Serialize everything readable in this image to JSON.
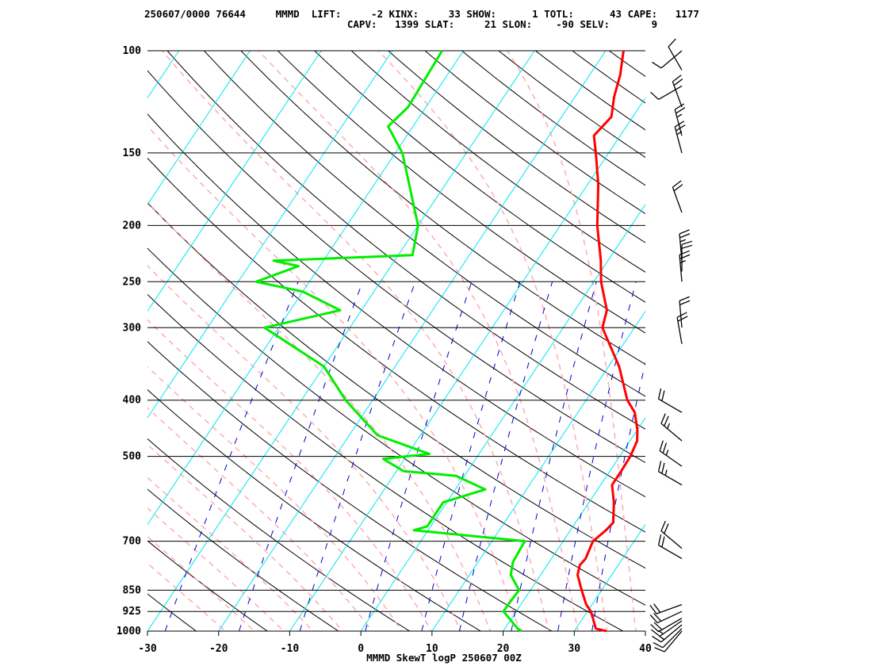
{
  "header": {
    "line1": "250607/0000 76644     MMMD  LIFT:     -2 KINX:     33 SHOW:      1 TOTL:      43 CAPE:   1177",
    "line2": "                                  CAPV:   1399 SLAT:     21 SLON:    -90 SELV:       9"
  },
  "footer": "MMMD SkewT logP 250607 00Z",
  "chart_data": {
    "type": "line",
    "title": "",
    "xlabel": "",
    "ylabel": "",
    "x_scale": "linear (skewed isotherms)",
    "y_scale": "log pressure",
    "xlim": [
      -30,
      40
    ],
    "ylim_hPa": [
      1000,
      100
    ],
    "x_ticks": [
      -30,
      -20,
      -10,
      0,
      10,
      20,
      30,
      40
    ],
    "pressure_levels": [
      1000,
      925,
      850,
      700,
      500,
      400,
      300,
      250,
      200,
      150,
      100
    ],
    "legend": "none",
    "colors": {
      "temperature": "#ff0000",
      "dewpoint": "#00ee00",
      "isotherm": "#00e5ee",
      "dry_adiabat": "#000000",
      "moist_adiabat": "#ffaab4",
      "mixing_ratio": "#0000cc",
      "isobar": "#000000",
      "wind_barb": "#000000"
    },
    "series": [
      {
        "points": [
          [
            1000,
            34.5
          ],
          [
            990,
            32.8
          ],
          [
            925,
            30.5
          ],
          [
            900,
            29.2
          ],
          [
            850,
            27.2
          ],
          [
            800,
            25.2
          ],
          [
            770,
            24.6
          ],
          [
            750,
            24.8
          ],
          [
            700,
            24.2
          ],
          [
            670,
            25
          ],
          [
            650,
            25.3
          ],
          [
            600,
            23.5
          ],
          [
            560,
            21.6
          ],
          [
            530,
            21.6
          ],
          [
            500,
            21.5
          ],
          [
            470,
            21
          ],
          [
            450,
            20
          ],
          [
            420,
            18
          ],
          [
            400,
            15.8
          ],
          [
            350,
            11.5
          ],
          [
            300,
            5.5
          ],
          [
            280,
            4.5
          ],
          [
            250,
            1
          ],
          [
            230,
            -1
          ],
          [
            200,
            -4.8
          ],
          [
            170,
            -8.5
          ],
          [
            150,
            -11.8
          ],
          [
            140,
            -13.7
          ],
          [
            130,
            -13
          ],
          [
            120,
            -14.5
          ],
          [
            110,
            -15.7
          ],
          [
            100,
            -17.5
          ]
        ]
      },
      {
        "points": [
          [
            1000,
            22.6
          ],
          [
            990,
            21.8
          ],
          [
            925,
            18.2
          ],
          [
            900,
            18.2
          ],
          [
            850,
            18.4
          ],
          [
            800,
            15.8
          ],
          [
            760,
            14.9
          ],
          [
            700,
            14.6
          ],
          [
            670,
            -2
          ],
          [
            660,
            -0.5
          ],
          [
            600,
            -0.5
          ],
          [
            570,
            4.2
          ],
          [
            540,
            -1.2
          ],
          [
            530,
            -9
          ],
          [
            505,
            -13
          ],
          [
            495,
            -7
          ],
          [
            460,
            -16
          ],
          [
            400,
            -23.8
          ],
          [
            350,
            -30
          ],
          [
            300,
            -42
          ],
          [
            280,
            -33
          ],
          [
            260,
            -40
          ],
          [
            250,
            -47.5
          ],
          [
            235,
            -43
          ],
          [
            230,
            -47
          ],
          [
            225,
            -28
          ],
          [
            200,
            -30
          ],
          [
            150,
            -39
          ],
          [
            135,
            -43.5
          ],
          [
            125,
            -42.5
          ],
          [
            100,
            -43
          ]
        ]
      }
    ],
    "wind_barbs": [
      {
        "p": 1000,
        "dir": 220,
        "spd": 10
      },
      {
        "p": 990,
        "dir": 225,
        "spd": 10
      },
      {
        "p": 975,
        "dir": 230,
        "spd": 15
      },
      {
        "p": 960,
        "dir": 235,
        "spd": 15
      },
      {
        "p": 950,
        "dir": 240,
        "spd": 20
      },
      {
        "p": 925,
        "dir": 245,
        "spd": 20
      },
      {
        "p": 900,
        "dir": 250,
        "spd": 20
      },
      {
        "p": 750,
        "dir": 300,
        "spd": 20
      },
      {
        "p": 720,
        "dir": 310,
        "spd": 20
      },
      {
        "p": 560,
        "dir": 300,
        "spd": 25
      },
      {
        "p": 520,
        "dir": 305,
        "spd": 25
      },
      {
        "p": 470,
        "dir": 310,
        "spd": 25
      },
      {
        "p": 420,
        "dir": 300,
        "spd": 20
      },
      {
        "p": 320,
        "dir": 350,
        "spd": 20
      },
      {
        "p": 300,
        "dir": 355,
        "spd": 20
      },
      {
        "p": 250,
        "dir": 355,
        "spd": 25
      },
      {
        "p": 240,
        "dir": 360,
        "spd": 20
      },
      {
        "p": 230,
        "dir": 355,
        "spd": 25
      },
      {
        "p": 190,
        "dir": 340,
        "spd": 20
      },
      {
        "p": 150,
        "dir": 345,
        "spd": 25
      },
      {
        "p": 140,
        "dir": 345,
        "spd": 25
      },
      {
        "p": 125,
        "dir": 340,
        "spd": 20
      },
      {
        "p": 115,
        "dir": 240,
        "spd": 10
      },
      {
        "p": 108,
        "dir": 330,
        "spd": 10
      },
      {
        "p": 100,
        "dir": 230,
        "spd": 10
      }
    ]
  }
}
